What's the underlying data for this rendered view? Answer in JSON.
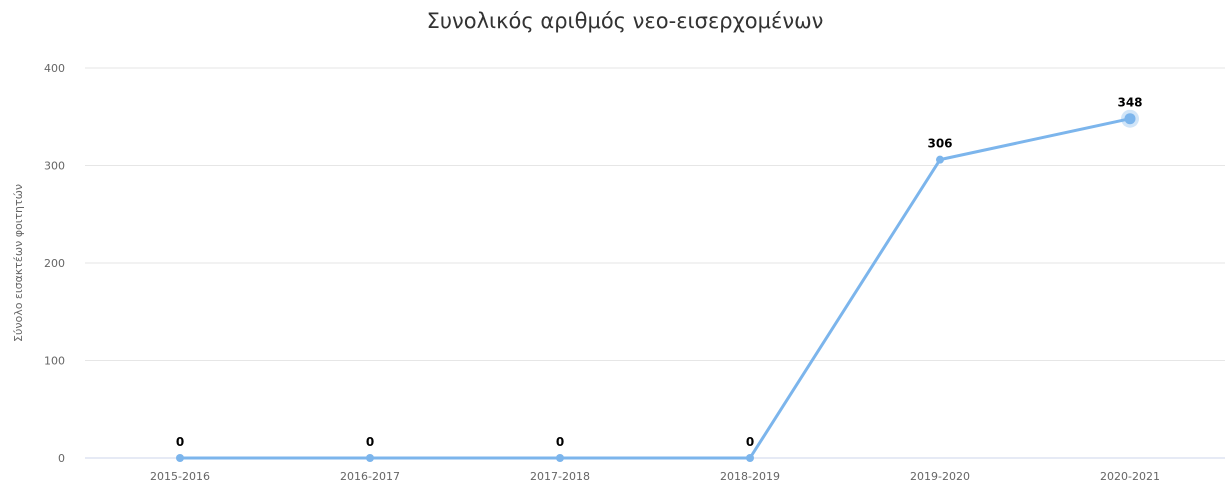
{
  "chart_data": {
    "type": "line",
    "title": "Συνολικός αριθμός νεο-εισερχομένων",
    "ylabel": "Σύνολο εισακτέων φοιτητών",
    "xlabel": "",
    "categories": [
      "2015-2016",
      "2016-2017",
      "2017-2018",
      "2018-2019",
      "2019-2020",
      "2020-2021"
    ],
    "series": [
      {
        "values": [
          0,
          0,
          0,
          0,
          306,
          348
        ],
        "color": "#7cb5ec"
      }
    ],
    "ylim": [
      0,
      400
    ],
    "yticks": [
      "0",
      "100",
      "200",
      "300",
      "400"
    ],
    "y_tick_values": [
      0,
      100,
      200,
      300,
      400
    ],
    "data_labels": [
      "0",
      "0",
      "0",
      "0",
      "306",
      "348"
    ],
    "grid": "horizontal",
    "legend": "none",
    "highlighted_point": 5
  }
}
